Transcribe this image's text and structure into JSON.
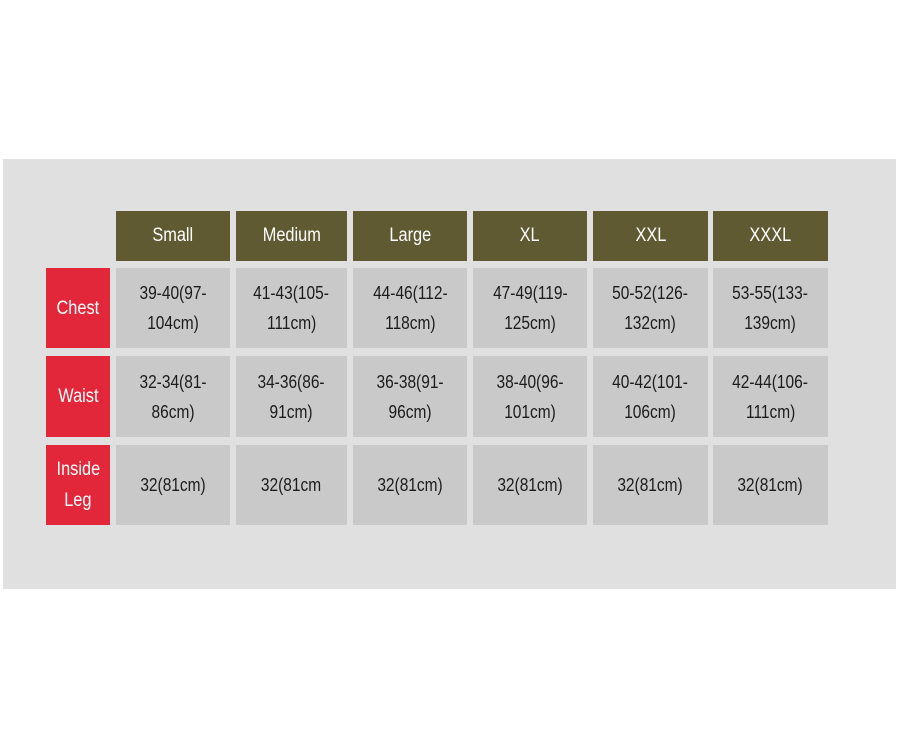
{
  "colors": {
    "background": "#e0e0e0",
    "header": "#5f5a31",
    "row_label": "#e3273a",
    "cell": "#c9c9c9"
  },
  "sizes": [
    "Small",
    "Medium",
    "Large",
    "XL",
    "XXL",
    "XXXL"
  ],
  "rows": [
    {
      "label": [
        "Chest"
      ],
      "values": [
        [
          "39-40(97-",
          "104cm)"
        ],
        [
          "41-43(105-",
          "111cm)"
        ],
        [
          "44-46(112-",
          "118cm)"
        ],
        [
          "47-49(119-",
          "125cm)"
        ],
        [
          "50-52(126-",
          "132cm)"
        ],
        [
          "53-55(133-",
          "139cm)"
        ]
      ]
    },
    {
      "label": [
        "Waist"
      ],
      "values": [
        [
          "32-34(81-",
          "86cm)"
        ],
        [
          "34-36(86-",
          "91cm)"
        ],
        [
          "36-38(91-",
          "96cm)"
        ],
        [
          "38-40(96-",
          "101cm)"
        ],
        [
          "40-42(101-",
          "106cm)"
        ],
        [
          "42-44(106-",
          "111cm)"
        ]
      ]
    },
    {
      "label": [
        "Inside",
        "Leg"
      ],
      "values": [
        [
          "32(81cm)"
        ],
        [
          "32(81cm"
        ],
        [
          "32(81cm)"
        ],
        [
          "32(81cm)"
        ],
        [
          "32(81cm)"
        ],
        [
          "32(81cm)"
        ]
      ]
    }
  ]
}
